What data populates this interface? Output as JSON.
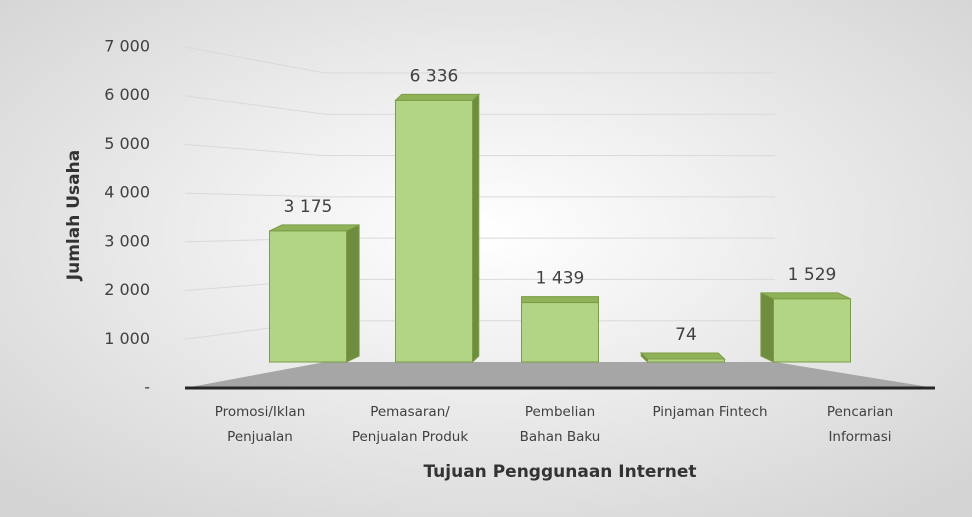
{
  "chart_data": {
    "type": "bar3d",
    "x_label": "Tujuan Penggunaan Internet",
    "y_label": "Jumlah Usaha",
    "categories": [
      [
        "Promosi/Iklan",
        "Penjualan"
      ],
      [
        "Pemasaran/",
        "Penjualan Produk"
      ],
      [
        "Pembelian",
        "Bahan Baku"
      ],
      [
        "Pinjaman Fintech"
      ],
      [
        "Pencarian",
        "Informasi"
      ]
    ],
    "values": [
      3175,
      6336,
      1439,
      74,
      1529
    ],
    "value_labels": [
      "3 175",
      "6 336",
      "1 439",
      "74",
      "1 529"
    ],
    "color": "#b1d584",
    "ylim": [
      0,
      7000
    ],
    "yticks": [
      {
        "value": 0,
        "label": "-"
      },
      {
        "value": 1000,
        "label": "1 000"
      },
      {
        "value": 2000,
        "label": "2 000"
      },
      {
        "value": 3000,
        "label": "3 000"
      },
      {
        "value": 4000,
        "label": "4 000"
      },
      {
        "value": 5000,
        "label": "5 000"
      },
      {
        "value": 6000,
        "label": "6 000"
      },
      {
        "value": 7000,
        "label": "7 000"
      }
    ],
    "grid": true
  }
}
